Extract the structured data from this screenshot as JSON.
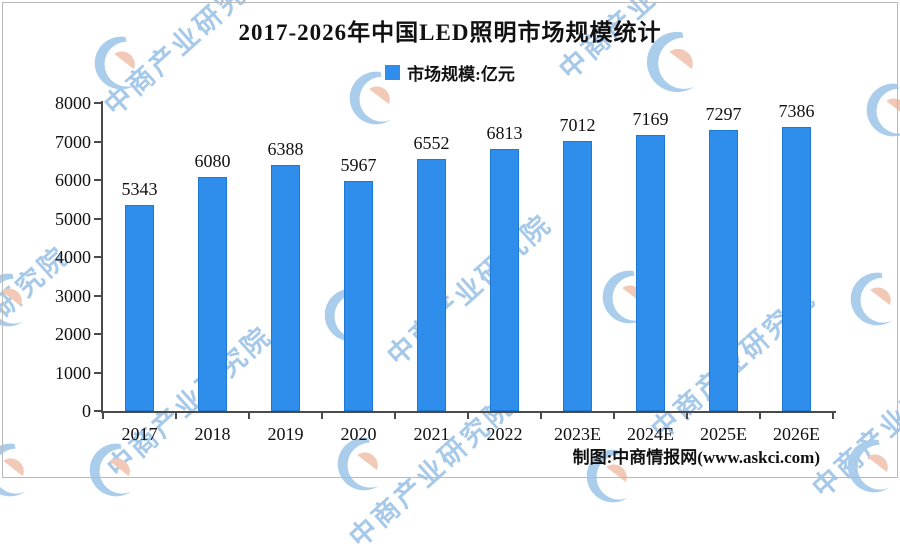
{
  "title": "2017-2026年中国LED照明市场规模统计",
  "legend": {
    "label": "市场规模:亿元"
  },
  "source": "制图:中商情报网(www.askci.com)",
  "watermark": {
    "text": "中商产业研究院",
    "logo_name": "askci-circle-logo",
    "text_color": "#A7C9E9",
    "logo_blue": "#A9CDEB",
    "logo_peach": "#F2C9B6"
  },
  "colors": {
    "bar": "#2F8DEB",
    "axis": "#4a4a4a"
  },
  "chart_data": {
    "type": "bar",
    "categories": [
      "2017",
      "2018",
      "2019",
      "2020",
      "2021",
      "2022",
      "2023E",
      "2024E",
      "2025E",
      "2026E"
    ],
    "values": [
      5343,
      6080,
      6388,
      5967,
      6552,
      6813,
      7012,
      7169,
      7297,
      7386
    ],
    "series_name": "市场规模:亿元",
    "title": "2017-2026年中国LED照明市场规模统计",
    "xlabel": "",
    "ylabel": "",
    "ylim": [
      0,
      8000
    ],
    "ytick_step": 1000,
    "grid": false,
    "legend_position": "top",
    "bar_color": "#2F8DEB",
    "value_labels": true
  }
}
